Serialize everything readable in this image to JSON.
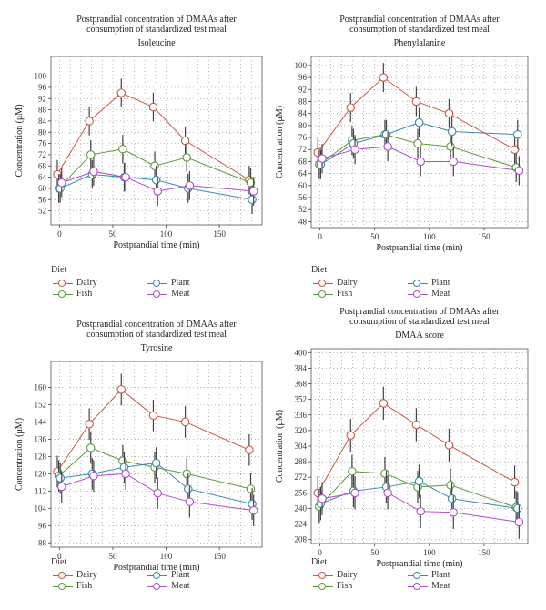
{
  "colors": {
    "Dairy": "#c8584a",
    "Fish": "#5e9a3a",
    "Plant": "#3a8aa8",
    "Meat": "#b04cc8",
    "errorbar": "#444444",
    "grid": "#9a9a9a"
  },
  "legend": {
    "title": "Diet",
    "items": [
      "Dairy",
      "Plant",
      "Fish",
      "Meat"
    ]
  },
  "chart_data": [
    {
      "type": "line",
      "title": "Postprandial concentration of DMAAs after consumption of standardized test meal",
      "title_line1": "Postprandial concentration of DMAAs after",
      "title_line2": "consumption of standardized test meal",
      "subtitle": "Isoleucine",
      "xlabel": "Postprandial time (min)",
      "ylabel": "Concentration (μM)",
      "xlim": [
        -8,
        190
      ],
      "ylim": [
        47,
        107
      ],
      "xticks": [
        0,
        50,
        100,
        150
      ],
      "yticks": [
        52,
        56,
        60,
        64,
        68,
        72,
        76,
        80,
        84,
        88,
        92,
        96,
        100
      ],
      "x": [
        0,
        30,
        60,
        90,
        120,
        180
      ],
      "series": [
        {
          "name": "Dairy",
          "values": [
            65,
            84,
            94,
            89,
            77,
            63
          ]
        },
        {
          "name": "Fish",
          "values": [
            60,
            72,
            74,
            68,
            71,
            62
          ]
        },
        {
          "name": "Plant",
          "values": [
            60,
            65,
            64,
            63,
            60,
            56
          ]
        },
        {
          "name": "Meat",
          "values": [
            62,
            66,
            64,
            59,
            61,
            59
          ]
        }
      ]
    },
    {
      "type": "line",
      "title": "Postprandial concentration of DMAAs after consumption of standardized test meal",
      "title_line1": "Postprandial concentration of DMAAs after",
      "title_line2": "consumption of standardized test meal",
      "subtitle": "Phenylalanine",
      "xlabel": "Postprandial time (min)",
      "ylabel": "Concentration (μM)",
      "xlim": [
        -8,
        190
      ],
      "ylim": [
        46,
        103
      ],
      "xticks": [
        0,
        50,
        100,
        150
      ],
      "yticks": [
        48,
        52,
        56,
        60,
        64,
        68,
        72,
        76,
        80,
        84,
        88,
        92,
        96,
        100
      ],
      "x": [
        0,
        30,
        60,
        90,
        120,
        180
      ],
      "series": [
        {
          "name": "Dairy",
          "values": [
            71,
            86,
            96,
            88,
            84,
            72
          ]
        },
        {
          "name": "Fish",
          "values": [
            67,
            75,
            77,
            74,
            73,
            66
          ]
        },
        {
          "name": "Plant",
          "values": [
            67,
            74,
            77,
            81,
            78,
            77
          ]
        },
        {
          "name": "Meat",
          "values": [
            69,
            72,
            73,
            68,
            68,
            65
          ]
        }
      ]
    },
    {
      "type": "line",
      "title": "Postprandial concentration of DMAAs after consumption of standardized test meal",
      "title_line1": "Postprandial concentration of DMAAs after",
      "title_line2": "consumption of standardized test meal",
      "subtitle": "Tyrosine",
      "xlabel": "Postprandial time (min)",
      "ylabel": "Concentration (μM)",
      "xlim": [
        -8,
        190
      ],
      "ylim": [
        86,
        172
      ],
      "xticks": [
        0,
        50,
        100,
        150
      ],
      "yticks": [
        88,
        96,
        104,
        112,
        120,
        128,
        136,
        144,
        152,
        160
      ],
      "x": [
        0,
        30,
        60,
        90,
        120,
        180
      ],
      "series": [
        {
          "name": "Dairy",
          "values": [
            121,
            143,
            159,
            147,
            144,
            131
          ]
        },
        {
          "name": "Fish",
          "values": [
            119,
            132,
            126,
            123,
            120,
            113
          ]
        },
        {
          "name": "Plant",
          "values": [
            118,
            120,
            123,
            125,
            113,
            106
          ]
        },
        {
          "name": "Meat",
          "values": [
            114,
            119,
            120,
            111,
            107,
            103
          ]
        }
      ]
    },
    {
      "type": "line",
      "title": "Postprandial concentration of DMAAs after consumption of standardized test meal",
      "title_line1": "Postprandial concentration of DMAAs after",
      "title_line2": "consumption of standardized test meal",
      "subtitle": "DMAA score",
      "xlabel": "Postprandial time (min)",
      "ylabel": "Concentration (μM)",
      "xlim": [
        -8,
        190
      ],
      "ylim": [
        204,
        404
      ],
      "xticks": [
        0,
        50,
        100,
        150
      ],
      "yticks": [
        208,
        224,
        240,
        256,
        272,
        288,
        304,
        320,
        336,
        352,
        368,
        384,
        400
      ],
      "x": [
        0,
        30,
        60,
        90,
        120,
        180
      ],
      "series": [
        {
          "name": "Dairy",
          "values": [
            256,
            315,
            348,
            326,
            305,
            267
          ]
        },
        {
          "name": "Fish",
          "values": [
            242,
            278,
            276,
            262,
            264,
            241
          ]
        },
        {
          "name": "Plant",
          "values": [
            245,
            258,
            262,
            268,
            250,
            240
          ]
        },
        {
          "name": "Meat",
          "values": [
            250,
            256,
            256,
            237,
            236,
            226
          ]
        }
      ]
    }
  ]
}
